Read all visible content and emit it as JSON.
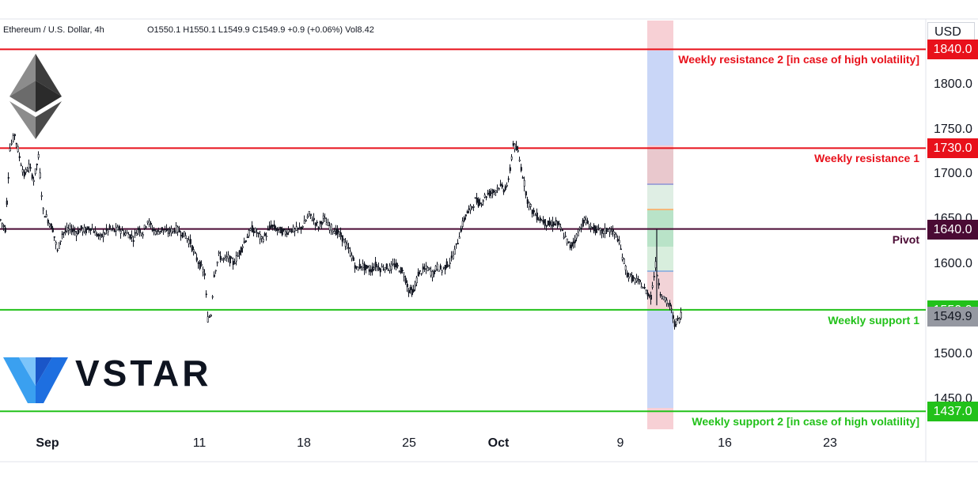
{
  "header": {
    "symbol": "Ethereum / U.S. Dollar, 4h",
    "ohlc": "O1550.1  H1550.1  L1549.9  C1549.9  +0.9 (+0.06%)  Vol8.42"
  },
  "currency": "USD",
  "brand": {
    "name": "VSTAR",
    "logo_icon": "vstar-v-logo",
    "eth_icon": "ethereum-diamond-icon"
  },
  "colors": {
    "resistance": "#e8111b",
    "support": "#22c11a",
    "pivot": "#4a0a34",
    "last_price": "#9598a1",
    "candle": "#131722",
    "band_blue": "#c9d6f7",
    "band_red": "#f7d0d5"
  },
  "chart_data": {
    "type": "candlestick",
    "x_ticks": [
      "Sep",
      "11",
      "18",
      "25",
      "Oct",
      "9",
      "16",
      "23"
    ],
    "y_ticks": [
      "1800.0",
      "1750.0",
      "1700.0",
      "1650.0",
      "1600.0",
      "1500.0",
      "1450.0"
    ],
    "ylim": [
      1417,
      1872
    ],
    "levels": [
      {
        "name": "Weekly resistance 2 [in case of high volatility]",
        "value": 1840.0,
        "badge": "1840.0",
        "kind": "resistance"
      },
      {
        "name": "Weekly resistance 1",
        "value": 1730.0,
        "badge": "1730.0",
        "kind": "resistance"
      },
      {
        "name": "Pivot",
        "value": 1640.0,
        "badge": "1640.0",
        "kind": "pivot"
      },
      {
        "name": "Weekly support 1",
        "value": 1550.0,
        "badge": "1550.0",
        "kind": "support"
      },
      {
        "name": "Weekly support 2 [in case of high volatility]",
        "value": 1437.0,
        "badge": "1437.0",
        "kind": "support"
      }
    ],
    "last_price": {
      "value": 1549.9,
      "badge": "1549.9"
    },
    "price_path": [
      [
        0,
        1650
      ],
      [
        6,
        1640
      ],
      [
        12,
        1730
      ],
      [
        18,
        1745
      ],
      [
        24,
        1720
      ],
      [
        30,
        1700
      ],
      [
        36,
        1710
      ],
      [
        42,
        1695
      ],
      [
        48,
        1720
      ],
      [
        54,
        1660
      ],
      [
        60,
        1650
      ],
      [
        66,
        1640
      ],
      [
        72,
        1615
      ],
      [
        78,
        1635
      ],
      [
        84,
        1638
      ],
      [
        90,
        1640
      ],
      [
        96,
        1636
      ],
      [
        102,
        1640
      ],
      [
        108,
        1638
      ],
      [
        114,
        1642
      ],
      [
        120,
        1636
      ],
      [
        126,
        1630
      ],
      [
        132,
        1636
      ],
      [
        138,
        1640
      ],
      [
        144,
        1638
      ],
      [
        150,
        1640
      ],
      [
        156,
        1636
      ],
      [
        162,
        1634
      ],
      [
        168,
        1630
      ],
      [
        174,
        1640
      ],
      [
        180,
        1636
      ],
      [
        186,
        1650
      ],
      [
        192,
        1640
      ],
      [
        198,
        1636
      ],
      [
        204,
        1640
      ],
      [
        210,
        1636
      ],
      [
        216,
        1638
      ],
      [
        222,
        1640
      ],
      [
        228,
        1636
      ],
      [
        234,
        1632
      ],
      [
        240,
        1625
      ],
      [
        246,
        1610
      ],
      [
        252,
        1600
      ],
      [
        258,
        1590
      ],
      [
        262,
        1540
      ],
      [
        266,
        1545
      ],
      [
        270,
        1590
      ],
      [
        276,
        1610
      ],
      [
        282,
        1606
      ],
      [
        288,
        1608
      ],
      [
        294,
        1602
      ],
      [
        300,
        1610
      ],
      [
        306,
        1622
      ],
      [
        312,
        1632
      ],
      [
        318,
        1640
      ],
      [
        324,
        1636
      ],
      [
        330,
        1628
      ],
      [
        336,
        1634
      ],
      [
        342,
        1644
      ],
      [
        348,
        1640
      ],
      [
        354,
        1638
      ],
      [
        360,
        1636
      ],
      [
        366,
        1640
      ],
      [
        372,
        1638
      ],
      [
        378,
        1640
      ],
      [
        384,
        1646
      ],
      [
        390,
        1656
      ],
      [
        396,
        1650
      ],
      [
        402,
        1642
      ],
      [
        408,
        1652
      ],
      [
        414,
        1644
      ],
      [
        420,
        1640
      ],
      [
        426,
        1636
      ],
      [
        432,
        1630
      ],
      [
        438,
        1620
      ],
      [
        444,
        1610
      ],
      [
        450,
        1595
      ],
      [
        456,
        1600
      ],
      [
        462,
        1596
      ],
      [
        468,
        1594
      ],
      [
        474,
        1600
      ],
      [
        480,
        1596
      ],
      [
        486,
        1598
      ],
      [
        492,
        1596
      ],
      [
        498,
        1600
      ],
      [
        504,
        1596
      ],
      [
        510,
        1590
      ],
      [
        516,
        1572
      ],
      [
        522,
        1570
      ],
      [
        528,
        1590
      ],
      [
        534,
        1594
      ],
      [
        540,
        1596
      ],
      [
        546,
        1590
      ],
      [
        552,
        1598
      ],
      [
        558,
        1594
      ],
      [
        564,
        1600
      ],
      [
        570,
        1606
      ],
      [
        576,
        1620
      ],
      [
        582,
        1640
      ],
      [
        588,
        1656
      ],
      [
        594,
        1662
      ],
      [
        600,
        1672
      ],
      [
        606,
        1668
      ],
      [
        612,
        1676
      ],
      [
        618,
        1680
      ],
      [
        624,
        1682
      ],
      [
        630,
        1688
      ],
      [
        636,
        1684
      ],
      [
        642,
        1692
      ],
      [
        648,
        1735
      ],
      [
        654,
        1725
      ],
      [
        660,
        1700
      ],
      [
        666,
        1672
      ],
      [
        672,
        1660
      ],
      [
        678,
        1654
      ],
      [
        684,
        1650
      ],
      [
        690,
        1646
      ],
      [
        696,
        1644
      ],
      [
        702,
        1648
      ],
      [
        708,
        1640
      ],
      [
        714,
        1630
      ],
      [
        720,
        1620
      ],
      [
        726,
        1628
      ],
      [
        732,
        1640
      ],
      [
        738,
        1650
      ],
      [
        744,
        1644
      ],
      [
        750,
        1640
      ],
      [
        756,
        1638
      ],
      [
        762,
        1636
      ],
      [
        768,
        1640
      ],
      [
        774,
        1636
      ],
      [
        780,
        1630
      ],
      [
        786,
        1610
      ],
      [
        792,
        1590
      ],
      [
        798,
        1585
      ],
      [
        804,
        1582
      ],
      [
        810,
        1578
      ],
      [
        816,
        1570
      ],
      [
        822,
        1565
      ],
      [
        828,
        1600
      ],
      [
        834,
        1570
      ],
      [
        840,
        1560
      ],
      [
        846,
        1555
      ],
      [
        852,
        1535
      ],
      [
        858,
        1540
      ],
      [
        862,
        1549.9
      ]
    ]
  }
}
